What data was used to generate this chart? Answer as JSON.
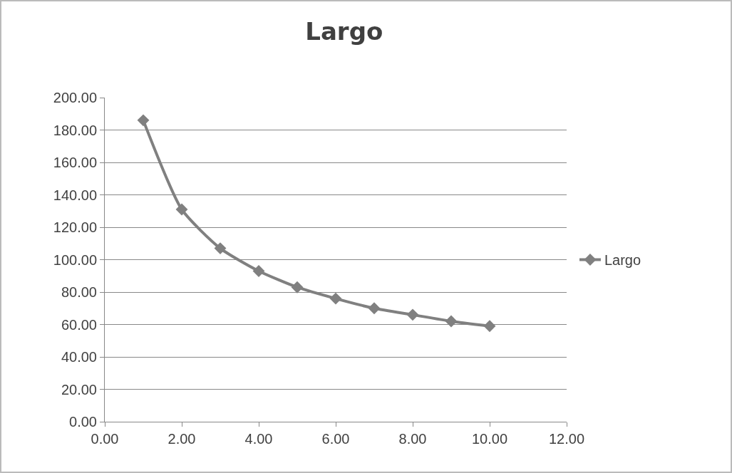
{
  "chart_data": {
    "type": "line",
    "title": "Largo",
    "x": [
      1,
      2,
      3,
      4,
      5,
      6,
      7,
      8,
      9,
      10
    ],
    "series": [
      {
        "name": "Largo",
        "color": "#808080",
        "values": [
          186,
          131,
          107,
          93,
          83,
          76,
          70,
          66,
          62,
          59
        ]
      }
    ],
    "xlim": [
      0,
      12
    ],
    "xticks": [
      {
        "value": 0,
        "label": "0.00"
      },
      {
        "value": 2,
        "label": "2.00"
      },
      {
        "value": 4,
        "label": "4.00"
      },
      {
        "value": 6,
        "label": "6.00"
      },
      {
        "value": 8,
        "label": "8.00"
      },
      {
        "value": 10,
        "label": "10.00"
      },
      {
        "value": 12,
        "label": "12.00"
      }
    ],
    "ylim": [
      0,
      200
    ],
    "yticks": [
      {
        "value": 0,
        "label": "0.00"
      },
      {
        "value": 20,
        "label": "20.00"
      },
      {
        "value": 40,
        "label": "40.00"
      },
      {
        "value": 60,
        "label": "60.00"
      },
      {
        "value": 80,
        "label": "80.00"
      },
      {
        "value": 100,
        "label": "100.00"
      },
      {
        "value": 120,
        "label": "120.00"
      },
      {
        "value": 140,
        "label": "140.00"
      },
      {
        "value": 160,
        "label": "160.00"
      },
      {
        "value": 180,
        "label": "180.00"
      },
      {
        "value": 200,
        "label": "200.00"
      }
    ],
    "grid": "y",
    "legend": "right",
    "marker": "diamond",
    "line_style": "solid"
  }
}
